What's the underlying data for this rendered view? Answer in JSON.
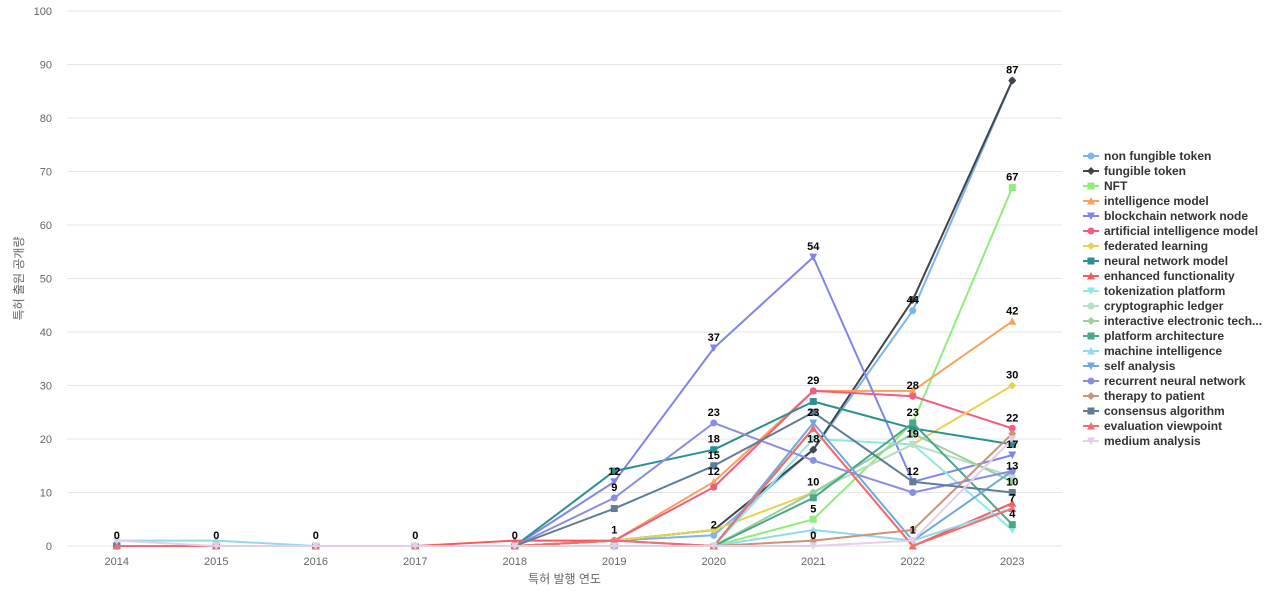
{
  "chart_data": {
    "type": "line",
    "title": "",
    "xlabel": "특허 발행 연도",
    "ylabel": "특허 출원 공개량",
    "ylim": [
      0,
      100
    ],
    "yticks": [
      0,
      10,
      20,
      30,
      40,
      50,
      60,
      70,
      80,
      90,
      100
    ],
    "categories": [
      "2014",
      "2015",
      "2016",
      "2017",
      "2018",
      "2019",
      "2020",
      "2021",
      "2022",
      "2023"
    ],
    "legend_position": "right",
    "series": [
      {
        "name": "non fungible token",
        "color": "#7cb5ec",
        "marker": "circle",
        "values": [
          0,
          0,
          0,
          0,
          0,
          1,
          2,
          18,
          44,
          87
        ]
      },
      {
        "name": "fungible token",
        "color": "#434348",
        "marker": "diamond",
        "values": [
          0,
          0,
          0,
          0,
          0,
          1,
          3,
          18,
          46,
          87
        ]
      },
      {
        "name": "NFT",
        "color": "#90ed7d",
        "marker": "square",
        "values": [
          0,
          0,
          0,
          0,
          0,
          0,
          0,
          5,
          23,
          67
        ]
      },
      {
        "name": "intelligence model",
        "color": "#f7a35c",
        "marker": "triangle",
        "values": [
          0,
          0,
          0,
          0,
          0,
          1,
          12,
          29,
          29,
          42
        ]
      },
      {
        "name": "blockchain network node",
        "color": "#8085e9",
        "marker": "triangle-down",
        "values": [
          0,
          0,
          0,
          0,
          0,
          12,
          37,
          54,
          12,
          17
        ]
      },
      {
        "name": "artificial intelligence model",
        "color": "#f15c80",
        "marker": "circle",
        "values": [
          0,
          0,
          0,
          0,
          0,
          1,
          11,
          29,
          28,
          22
        ]
      },
      {
        "name": "federated learning",
        "color": "#e4d354",
        "marker": "diamond",
        "values": [
          0,
          0,
          0,
          0,
          0,
          1,
          3,
          10,
          19,
          30
        ]
      },
      {
        "name": "neural network model",
        "color": "#2b908f",
        "marker": "square",
        "values": [
          0,
          0,
          0,
          0,
          0,
          14,
          18,
          27,
          22,
          19
        ]
      },
      {
        "name": "enhanced functionality",
        "color": "#f45b5b",
        "marker": "triangle",
        "values": [
          0,
          0,
          0,
          0,
          1,
          1,
          0,
          22,
          0,
          8
        ]
      },
      {
        "name": "tokenization platform",
        "color": "#91e8e1",
        "marker": "triangle-down",
        "values": [
          0,
          0,
          0,
          0,
          0,
          0,
          0,
          20,
          19,
          3
        ]
      },
      {
        "name": "cryptographic ledger",
        "color": "#b5dfc8",
        "marker": "circle",
        "values": [
          0,
          0,
          0,
          0,
          0,
          0,
          0,
          10,
          19,
          13
        ]
      },
      {
        "name": "interactive electronic tech...",
        "color": "#9fcf9f",
        "marker": "diamond",
        "values": [
          0,
          0,
          0,
          0,
          0,
          0,
          0,
          10,
          21,
          12
        ]
      },
      {
        "name": "platform architecture",
        "color": "#4aa88a",
        "marker": "square",
        "values": [
          0,
          0,
          0,
          0,
          0,
          0,
          0,
          9,
          23,
          4
        ]
      },
      {
        "name": "machine intelligence",
        "color": "#94d8ec",
        "marker": "triangle",
        "values": [
          1,
          1,
          0,
          0,
          0,
          0,
          0,
          3,
          1,
          7
        ]
      },
      {
        "name": "self analysis",
        "color": "#6fa8dc",
        "marker": "triangle-down",
        "values": [
          0,
          0,
          0,
          0,
          0,
          0,
          0,
          23,
          1,
          14
        ]
      },
      {
        "name": "recurrent neural network",
        "color": "#8a8ee0",
        "marker": "circle",
        "values": [
          0,
          0,
          0,
          0,
          0,
          9,
          23,
          16,
          10,
          14
        ]
      },
      {
        "name": "therapy to patient",
        "color": "#c9957a",
        "marker": "diamond",
        "values": [
          0,
          0,
          0,
          0,
          0,
          0,
          0,
          1,
          3,
          21
        ]
      },
      {
        "name": "consensus algorithm",
        "color": "#5f7d95",
        "marker": "square",
        "values": [
          0,
          0,
          0,
          0,
          0,
          7,
          15,
          25,
          12,
          10
        ]
      },
      {
        "name": "evaluation viewpoint",
        "color": "#ef6f6f",
        "marker": "triangle",
        "values": [
          0,
          0,
          0,
          0,
          0,
          1,
          0,
          22,
          0,
          7
        ]
      },
      {
        "name": "medium analysis",
        "color": "#e5cfe8",
        "marker": "triangle-down",
        "values": [
          1,
          0,
          0,
          0,
          0,
          0,
          0,
          0,
          1,
          20
        ]
      }
    ],
    "data_labels": [
      {
        "category": "2014",
        "value": 0,
        "text": "0"
      },
      {
        "category": "2015",
        "value": 0,
        "text": "0"
      },
      {
        "category": "2016",
        "value": 0,
        "text": "0"
      },
      {
        "category": "2017",
        "value": 0,
        "text": "0"
      },
      {
        "category": "2018",
        "value": 0,
        "text": "0"
      },
      {
        "category": "2019",
        "value": 1,
        "text": "1"
      },
      {
        "category": "2019",
        "value": 9,
        "text": "9"
      },
      {
        "category": "2019",
        "value": 12,
        "text": "12"
      },
      {
        "category": "2020",
        "value": 2,
        "text": "2"
      },
      {
        "category": "2020",
        "value": 12,
        "text": "12"
      },
      {
        "category": "2020",
        "value": 15,
        "text": "15"
      },
      {
        "category": "2020",
        "value": 18,
        "text": "18"
      },
      {
        "category": "2020",
        "value": 23,
        "text": "23"
      },
      {
        "category": "2020",
        "value": 37,
        "text": "37"
      },
      {
        "category": "2021",
        "value": 0,
        "text": "0"
      },
      {
        "category": "2021",
        "value": 5,
        "text": "5"
      },
      {
        "category": "2021",
        "value": 10,
        "text": "10"
      },
      {
        "category": "2021",
        "value": 18,
        "text": "18"
      },
      {
        "category": "2021",
        "value": 23,
        "text": "23"
      },
      {
        "category": "2021",
        "value": 29,
        "text": "29"
      },
      {
        "category": "2021",
        "value": 54,
        "text": "54"
      },
      {
        "category": "2022",
        "value": 1,
        "text": "1"
      },
      {
        "category": "2022",
        "value": 12,
        "text": "12"
      },
      {
        "category": "2022",
        "value": 19,
        "text": "19"
      },
      {
        "category": "2022",
        "value": 23,
        "text": "23"
      },
      {
        "category": "2022",
        "value": 28,
        "text": "28"
      },
      {
        "category": "2022",
        "value": 44,
        "text": "44"
      },
      {
        "category": "2023",
        "value": 4,
        "text": "4"
      },
      {
        "category": "2023",
        "value": 7,
        "text": "7"
      },
      {
        "category": "2023",
        "value": 10,
        "text": "10"
      },
      {
        "category": "2023",
        "value": 13,
        "text": "13"
      },
      {
        "category": "2023",
        "value": 17,
        "text": "17"
      },
      {
        "category": "2023",
        "value": 22,
        "text": "22"
      },
      {
        "category": "2023",
        "value": 30,
        "text": "30"
      },
      {
        "category": "2023",
        "value": 42,
        "text": "42"
      },
      {
        "category": "2023",
        "value": 67,
        "text": "67"
      },
      {
        "category": "2023",
        "value": 87,
        "text": "87"
      }
    ]
  }
}
